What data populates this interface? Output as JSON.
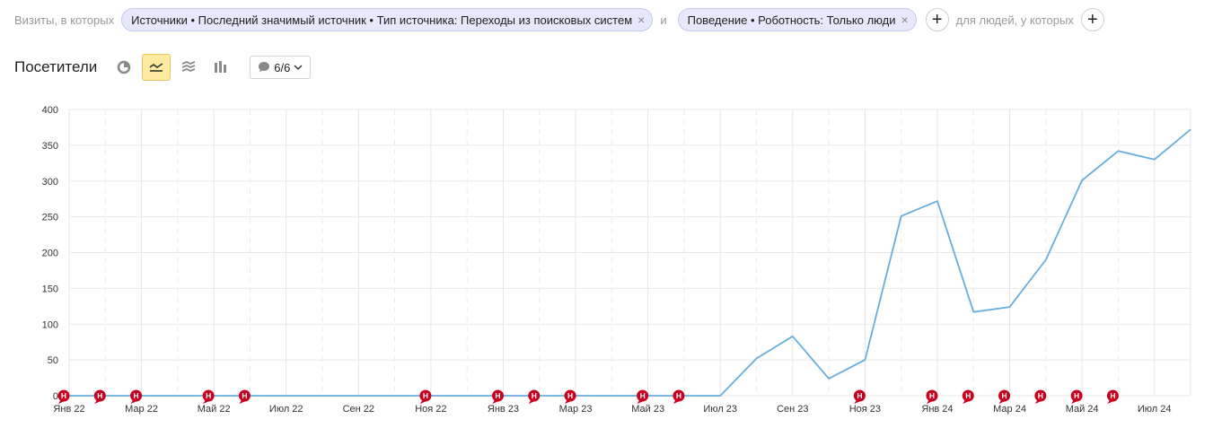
{
  "filters": {
    "prefix": "Визиты, в которых",
    "chip1": "Источники • Последний значимый источник • Тип источника: Переходы из поисковых систем",
    "chip1_display": "Источники • Последний значимый источник • Тип источника: Переходы из поисковых систем",
    "conj": "и",
    "chip2": "Поведение • Роботность: Только люди",
    "people": "для людей, у которых",
    "plus": "+",
    "close": "×"
  },
  "toolbar": {
    "title": "Посетители",
    "notes_count": "6/6"
  },
  "chart_data": {
    "type": "line",
    "title": "",
    "xlabel": "",
    "ylabel": "",
    "ylim": [
      0,
      400
    ],
    "yticks": [
      "0",
      "50",
      "100",
      "150",
      "200",
      "250",
      "300",
      "350",
      "400"
    ],
    "x_tick_labels": [
      "Янв 22",
      "Мар 22",
      "Май 22",
      "Июл 22",
      "Сен 22",
      "Ноя 22",
      "Янв 23",
      "Мар 23",
      "Май 23",
      "Июл 23",
      "Сен 23",
      "Ноя 23",
      "Янв 24",
      "Мар 24",
      "Май 24",
      "Июл 24"
    ],
    "categories": [
      "2022-01",
      "2022-02",
      "2022-03",
      "2022-04",
      "2022-05",
      "2022-06",
      "2022-07",
      "2022-08",
      "2022-09",
      "2022-10",
      "2022-11",
      "2022-12",
      "2023-01",
      "2023-02",
      "2023-03",
      "2023-04",
      "2023-05",
      "2023-06",
      "2023-07",
      "2023-08",
      "2023-09",
      "2023-10",
      "2023-11",
      "2023-12",
      "2024-01",
      "2024-02",
      "2024-03",
      "2024-04",
      "2024-05",
      "2024-06",
      "2024-07",
      "2024-08"
    ],
    "series": [
      {
        "values": [
          0,
          0,
          0,
          0,
          0,
          0,
          0,
          0,
          0,
          0,
          0,
          0,
          0,
          0,
          0,
          0,
          0,
          0,
          0,
          52,
          83,
          24,
          50,
          251,
          272,
          117,
          124,
          190,
          301,
          342,
          330,
          372
        ]
      }
    ],
    "line_color": "#67aede",
    "annotation_markers": [
      "2022-01",
      "2022-02",
      "2022-03",
      "2022-05",
      "2022-06",
      "2022-11",
      "2023-01",
      "2023-02",
      "2023-03",
      "2023-05",
      "2023-06",
      "2023-11",
      "2024-01",
      "2024-02",
      "2024-03",
      "2024-04",
      "2024-05",
      "2024-06"
    ],
    "marker_label": "Н",
    "marker_color": "#c8001e",
    "grid": true
  }
}
